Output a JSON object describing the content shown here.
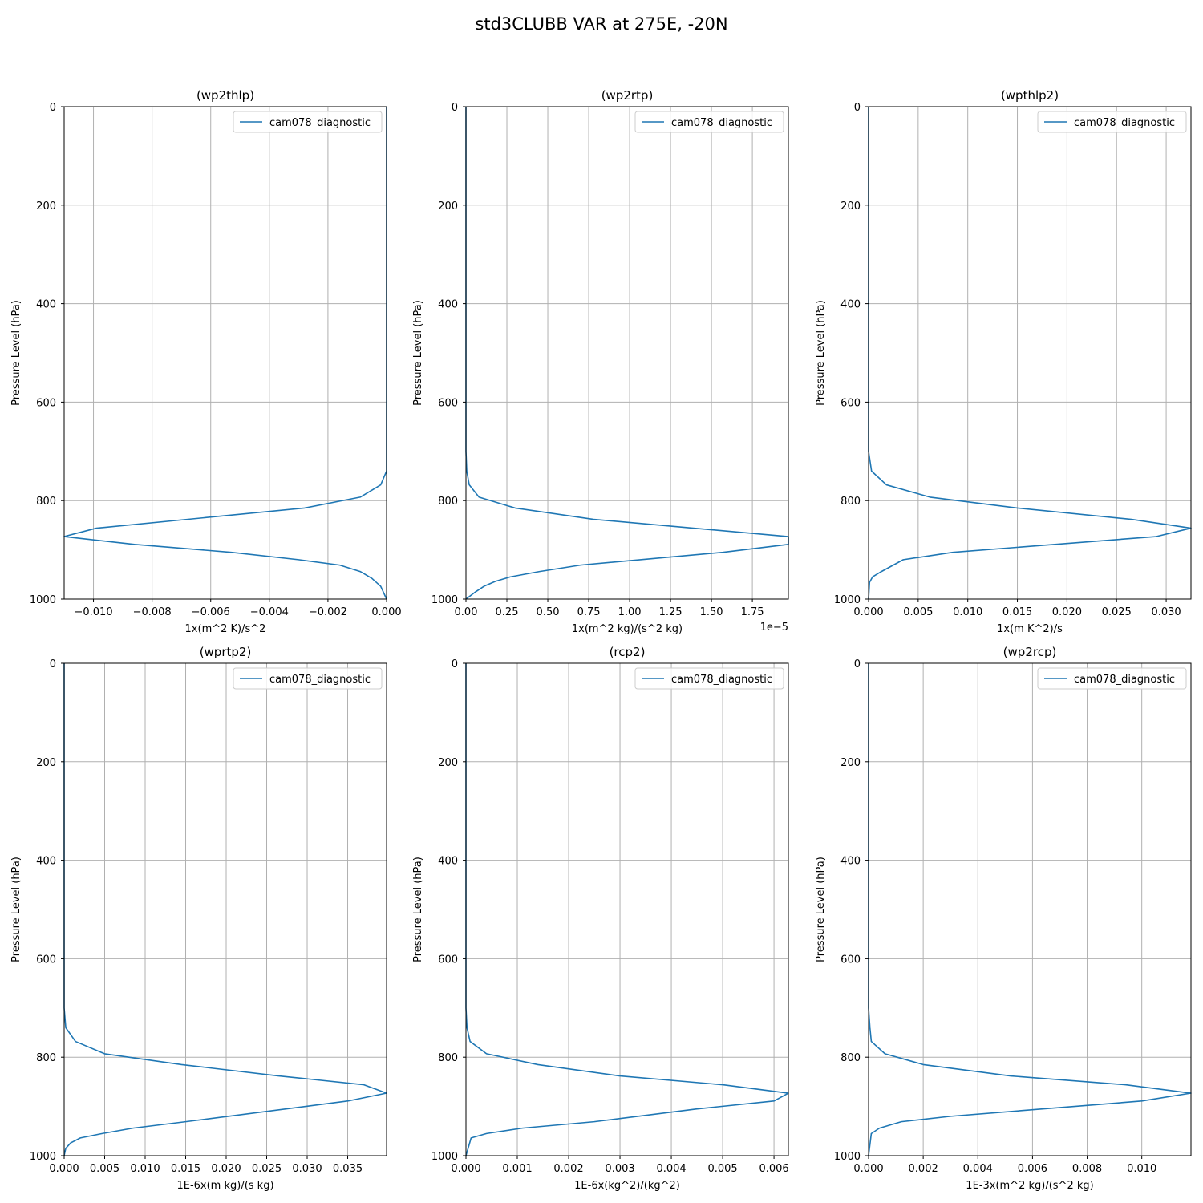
{
  "figure_title": "std3CLUBB VAR at 275E, -20N",
  "line_color": "#1f77b4",
  "chart_data": [
    {
      "type": "line",
      "title": "(wp2thlp)",
      "xlabel": "1x(m^2 K)/s^2",
      "ylabel": "Pressure Level (hPa)",
      "offset_text": "",
      "xlim": [
        -0.011,
        0.0
      ],
      "ylim": [
        1000,
        0
      ],
      "xticks": [
        -0.01,
        -0.008,
        -0.006,
        -0.004,
        -0.002,
        0.0
      ],
      "xtick_labels": [
        "−0.010",
        "−0.008",
        "−0.006",
        "−0.004",
        "−0.002",
        "0.000"
      ],
      "yticks": [
        0,
        200,
        400,
        600,
        800,
        1000
      ],
      "ytick_labels": [
        "0",
        "200",
        "400",
        "600",
        "800",
        "1000"
      ],
      "grid": true,
      "legend_position": "top-right",
      "series": [
        {
          "name": "cam078_diagnostic",
          "x": [
            0.0,
            0.0,
            0.0,
            0.0,
            -0.0002,
            -0.0009,
            -0.0028,
            -0.0099,
            -0.011,
            -0.0086,
            -0.0053,
            -0.003,
            -0.0016,
            -0.0009,
            -0.0005,
            -0.0002,
            0.0
          ],
          "y": [
            0,
            300,
            600,
            740,
            768,
            793,
            815,
            856,
            873,
            889,
            905,
            920,
            931,
            944,
            958,
            974,
            1000
          ]
        }
      ]
    },
    {
      "type": "line",
      "title": "(wp2rtp)",
      "xlabel": "1x(m^2 kg)/(s^2 kg)",
      "ylabel": "Pressure Level (hPa)",
      "offset_text": "1e−5",
      "xlim": [
        0.0,
        1.97
      ],
      "ylim": [
        1000,
        0
      ],
      "xticks": [
        0.0,
        0.25,
        0.5,
        0.75,
        1.0,
        1.25,
        1.5,
        1.75
      ],
      "xtick_labels": [
        "0.00",
        "0.25",
        "0.50",
        "0.75",
        "1.00",
        "1.25",
        "1.50",
        "1.75"
      ],
      "yticks": [
        0,
        200,
        400,
        600,
        800,
        1000
      ],
      "ytick_labels": [
        "0",
        "200",
        "400",
        "600",
        "800",
        "1000"
      ],
      "grid": true,
      "legend_position": "top-right",
      "series": [
        {
          "name": "cam078_diagnostic",
          "x": [
            0.0,
            0.0,
            0.0,
            0.005,
            0.02,
            0.08,
            0.3,
            0.78,
            1.97,
            1.97,
            1.57,
            0.7,
            0.45,
            0.27,
            0.18,
            0.11,
            0.06,
            0.0
          ],
          "y": [
            0,
            300,
            700,
            740,
            768,
            793,
            815,
            838,
            873,
            889,
            905,
            931,
            944,
            955,
            964,
            974,
            985,
            1000
          ]
        }
      ]
    },
    {
      "type": "line",
      "title": "(wpthlp2)",
      "xlabel": "1x(m K^2)/s",
      "ylabel": "Pressure Level (hPa)",
      "offset_text": "",
      "xlim": [
        0.0,
        0.0325
      ],
      "ylim": [
        1000,
        0
      ],
      "xticks": [
        0.0,
        0.005,
        0.01,
        0.015,
        0.02,
        0.025,
        0.03
      ],
      "xtick_labels": [
        "0.000",
        "0.005",
        "0.010",
        "0.015",
        "0.020",
        "0.025",
        "0.030"
      ],
      "yticks": [
        0,
        200,
        400,
        600,
        800,
        1000
      ],
      "ytick_labels": [
        "0",
        "200",
        "400",
        "600",
        "800",
        "1000"
      ],
      "grid": true,
      "legend_position": "top-right",
      "series": [
        {
          "name": "cam078_diagnostic",
          "x": [
            0.0,
            0.0,
            0.0,
            0.0003,
            0.0018,
            0.0062,
            0.015,
            0.0265,
            0.0325,
            0.029,
            0.0085,
            0.0035,
            0.0013,
            0.0004,
            0.0001,
            0.0
          ],
          "y": [
            0,
            300,
            700,
            740,
            768,
            793,
            815,
            838,
            856,
            873,
            905,
            920,
            944,
            955,
            966,
            1000
          ]
        }
      ]
    },
    {
      "type": "line",
      "title": "(wprtp2)",
      "xlabel": "1E-6x(m kg)/(s kg)",
      "ylabel": "Pressure Level (hPa)",
      "offset_text": "",
      "xlim": [
        0.0,
        0.0398
      ],
      "ylim": [
        1000,
        0
      ],
      "xticks": [
        0.0,
        0.005,
        0.01,
        0.015,
        0.02,
        0.025,
        0.03,
        0.035
      ],
      "xtick_labels": [
        "0.000",
        "0.005",
        "0.010",
        "0.015",
        "0.020",
        "0.025",
        "0.030",
        "0.035"
      ],
      "yticks": [
        0,
        200,
        400,
        600,
        800,
        1000
      ],
      "ytick_labels": [
        "0",
        "200",
        "400",
        "600",
        "800",
        "1000"
      ],
      "grid": true,
      "legend_position": "top-right",
      "series": [
        {
          "name": "cam078_diagnostic",
          "x": [
            0.0,
            0.0,
            0.0,
            0.0002,
            0.0014,
            0.005,
            0.0145,
            0.0265,
            0.037,
            0.0398,
            0.035,
            0.015,
            0.0085,
            0.0047,
            0.002,
            0.0008,
            0.0002,
            0.0
          ],
          "y": [
            0,
            300,
            700,
            740,
            768,
            793,
            815,
            838,
            856,
            873,
            889,
            931,
            944,
            955,
            964,
            974,
            985,
            1000
          ]
        }
      ]
    },
    {
      "type": "line",
      "title": "(rcp2)",
      "xlabel": "1E-6x(kg^2)/(kg^2)",
      "ylabel": "Pressure Level (hPa)",
      "offset_text": "",
      "xlim": [
        0.0,
        0.00628
      ],
      "ylim": [
        1000,
        0
      ],
      "xticks": [
        0.0,
        0.001,
        0.002,
        0.003,
        0.004,
        0.005,
        0.006
      ],
      "xtick_labels": [
        "0.000",
        "0.001",
        "0.002",
        "0.003",
        "0.004",
        "0.005",
        "0.006"
      ],
      "yticks": [
        0,
        200,
        400,
        600,
        800,
        1000
      ],
      "ytick_labels": [
        "0",
        "200",
        "400",
        "600",
        "800",
        "1000"
      ],
      "grid": true,
      "legend_position": "top-right",
      "series": [
        {
          "name": "cam078_diagnostic",
          "x": [
            0.0,
            0.0,
            0.0,
            2e-05,
            8e-05,
            0.0004,
            0.0014,
            0.003,
            0.005,
            0.00628,
            0.006,
            0.0045,
            0.0025,
            0.0011,
            0.0004,
            0.0001,
            0.0
          ],
          "y": [
            0,
            300,
            700,
            740,
            768,
            793,
            815,
            838,
            856,
            873,
            889,
            905,
            931,
            944,
            955,
            964,
            1000
          ]
        }
      ]
    },
    {
      "type": "line",
      "title": "(wp2rcp)",
      "xlabel": "1E-3x(m^2 kg)/(s^2 kg)",
      "ylabel": "Pressure Level (hPa)",
      "offset_text": "",
      "xlim": [
        0.0,
        0.0118
      ],
      "ylim": [
        1000,
        0
      ],
      "xticks": [
        0.0,
        0.002,
        0.004,
        0.006,
        0.008,
        0.01
      ],
      "xtick_labels": [
        "0.000",
        "0.002",
        "0.004",
        "0.006",
        "0.008",
        "0.010"
      ],
      "yticks": [
        0,
        200,
        400,
        600,
        800,
        1000
      ],
      "ytick_labels": [
        "0",
        "200",
        "400",
        "600",
        "800",
        "1000"
      ],
      "grid": true,
      "legend_position": "top-right",
      "series": [
        {
          "name": "cam078_diagnostic",
          "x": [
            0.0,
            0.0,
            0.0,
            5e-05,
            0.0001,
            0.0006,
            0.002,
            0.0052,
            0.0094,
            0.0118,
            0.01,
            0.003,
            0.0012,
            0.0004,
            0.0001,
            0.0
          ],
          "y": [
            0,
            300,
            700,
            740,
            768,
            793,
            815,
            838,
            856,
            873,
            889,
            920,
            931,
            944,
            955,
            1000
          ]
        }
      ]
    }
  ]
}
